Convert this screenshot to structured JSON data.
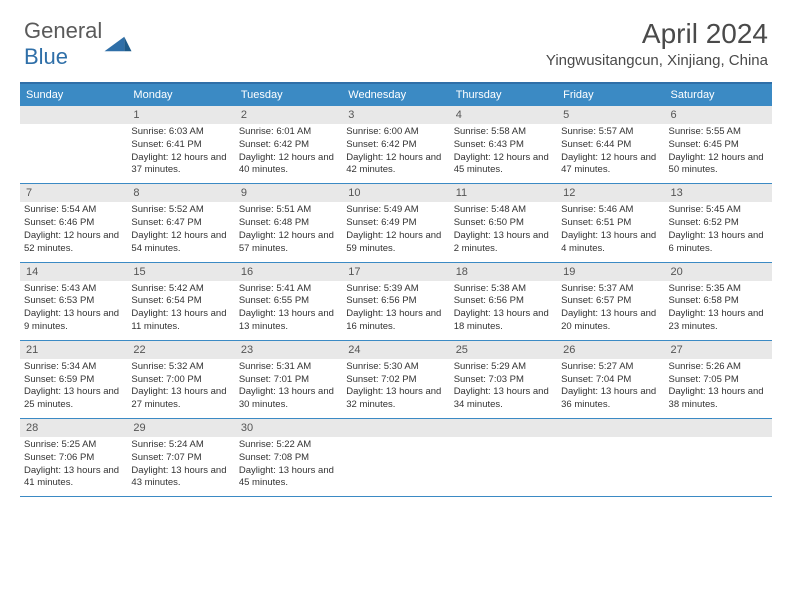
{
  "logo": {
    "text1": "General",
    "text2": "Blue"
  },
  "title": "April 2024",
  "location": "Yingwusitangcun, Xinjiang, China",
  "colors": {
    "header_bar": "#3b8ac4",
    "border": "#2f6fa8",
    "daynum_bg": "#e8e8e8",
    "text": "#333333",
    "background": "#ffffff"
  },
  "typography": {
    "title_fontsize": 28,
    "location_fontsize": 15,
    "dayheader_fontsize": 11,
    "daynum_fontsize": 11,
    "detail_fontsize": 9.5
  },
  "day_labels": [
    "Sunday",
    "Monday",
    "Tuesday",
    "Wednesday",
    "Thursday",
    "Friday",
    "Saturday"
  ],
  "weeks": [
    [
      {
        "num": "",
        "sunrise": "",
        "sunset": "",
        "daylight": ""
      },
      {
        "num": "1",
        "sunrise": "6:03 AM",
        "sunset": "6:41 PM",
        "daylight": "12 hours and 37 minutes."
      },
      {
        "num": "2",
        "sunrise": "6:01 AM",
        "sunset": "6:42 PM",
        "daylight": "12 hours and 40 minutes."
      },
      {
        "num": "3",
        "sunrise": "6:00 AM",
        "sunset": "6:42 PM",
        "daylight": "12 hours and 42 minutes."
      },
      {
        "num": "4",
        "sunrise": "5:58 AM",
        "sunset": "6:43 PM",
        "daylight": "12 hours and 45 minutes."
      },
      {
        "num": "5",
        "sunrise": "5:57 AM",
        "sunset": "6:44 PM",
        "daylight": "12 hours and 47 minutes."
      },
      {
        "num": "6",
        "sunrise": "5:55 AM",
        "sunset": "6:45 PM",
        "daylight": "12 hours and 50 minutes."
      }
    ],
    [
      {
        "num": "7",
        "sunrise": "5:54 AM",
        "sunset": "6:46 PM",
        "daylight": "12 hours and 52 minutes."
      },
      {
        "num": "8",
        "sunrise": "5:52 AM",
        "sunset": "6:47 PM",
        "daylight": "12 hours and 54 minutes."
      },
      {
        "num": "9",
        "sunrise": "5:51 AM",
        "sunset": "6:48 PM",
        "daylight": "12 hours and 57 minutes."
      },
      {
        "num": "10",
        "sunrise": "5:49 AM",
        "sunset": "6:49 PM",
        "daylight": "12 hours and 59 minutes."
      },
      {
        "num": "11",
        "sunrise": "5:48 AM",
        "sunset": "6:50 PM",
        "daylight": "13 hours and 2 minutes."
      },
      {
        "num": "12",
        "sunrise": "5:46 AM",
        "sunset": "6:51 PM",
        "daylight": "13 hours and 4 minutes."
      },
      {
        "num": "13",
        "sunrise": "5:45 AM",
        "sunset": "6:52 PM",
        "daylight": "13 hours and 6 minutes."
      }
    ],
    [
      {
        "num": "14",
        "sunrise": "5:43 AM",
        "sunset": "6:53 PM",
        "daylight": "13 hours and 9 minutes."
      },
      {
        "num": "15",
        "sunrise": "5:42 AM",
        "sunset": "6:54 PM",
        "daylight": "13 hours and 11 minutes."
      },
      {
        "num": "16",
        "sunrise": "5:41 AM",
        "sunset": "6:55 PM",
        "daylight": "13 hours and 13 minutes."
      },
      {
        "num": "17",
        "sunrise": "5:39 AM",
        "sunset": "6:56 PM",
        "daylight": "13 hours and 16 minutes."
      },
      {
        "num": "18",
        "sunrise": "5:38 AM",
        "sunset": "6:56 PM",
        "daylight": "13 hours and 18 minutes."
      },
      {
        "num": "19",
        "sunrise": "5:37 AM",
        "sunset": "6:57 PM",
        "daylight": "13 hours and 20 minutes."
      },
      {
        "num": "20",
        "sunrise": "5:35 AM",
        "sunset": "6:58 PM",
        "daylight": "13 hours and 23 minutes."
      }
    ],
    [
      {
        "num": "21",
        "sunrise": "5:34 AM",
        "sunset": "6:59 PM",
        "daylight": "13 hours and 25 minutes."
      },
      {
        "num": "22",
        "sunrise": "5:32 AM",
        "sunset": "7:00 PM",
        "daylight": "13 hours and 27 minutes."
      },
      {
        "num": "23",
        "sunrise": "5:31 AM",
        "sunset": "7:01 PM",
        "daylight": "13 hours and 30 minutes."
      },
      {
        "num": "24",
        "sunrise": "5:30 AM",
        "sunset": "7:02 PM",
        "daylight": "13 hours and 32 minutes."
      },
      {
        "num": "25",
        "sunrise": "5:29 AM",
        "sunset": "7:03 PM",
        "daylight": "13 hours and 34 minutes."
      },
      {
        "num": "26",
        "sunrise": "5:27 AM",
        "sunset": "7:04 PM",
        "daylight": "13 hours and 36 minutes."
      },
      {
        "num": "27",
        "sunrise": "5:26 AM",
        "sunset": "7:05 PM",
        "daylight": "13 hours and 38 minutes."
      }
    ],
    [
      {
        "num": "28",
        "sunrise": "5:25 AM",
        "sunset": "7:06 PM",
        "daylight": "13 hours and 41 minutes."
      },
      {
        "num": "29",
        "sunrise": "5:24 AM",
        "sunset": "7:07 PM",
        "daylight": "13 hours and 43 minutes."
      },
      {
        "num": "30",
        "sunrise": "5:22 AM",
        "sunset": "7:08 PM",
        "daylight": "13 hours and 45 minutes."
      },
      {
        "num": "",
        "sunrise": "",
        "sunset": "",
        "daylight": ""
      },
      {
        "num": "",
        "sunrise": "",
        "sunset": "",
        "daylight": ""
      },
      {
        "num": "",
        "sunrise": "",
        "sunset": "",
        "daylight": ""
      },
      {
        "num": "",
        "sunrise": "",
        "sunset": "",
        "daylight": ""
      }
    ]
  ],
  "labels": {
    "sunrise_prefix": "Sunrise: ",
    "sunset_prefix": "Sunset: ",
    "daylight_prefix": "Daylight: "
  }
}
